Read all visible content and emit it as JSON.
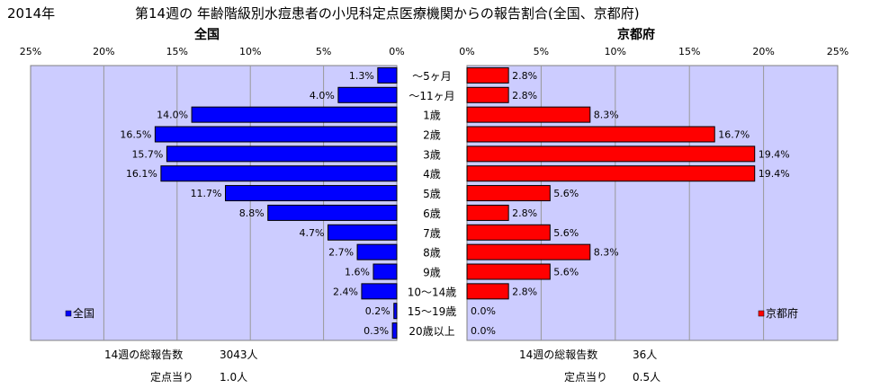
{
  "header": {
    "year": "2014年",
    "title": "第14週の 年齢階級別水痘患者の小児科定点医療機関からの報告割合(全国、京都府)"
  },
  "chart_data": [
    {
      "type": "bar",
      "orientation": "horizontal",
      "direction": "reversed",
      "title": "全国",
      "legend": "全国",
      "legend_position": "bottom-left",
      "color": "#0000ff",
      "xlim": [
        0,
        25
      ],
      "ticks": [
        "25%",
        "20%",
        "15%",
        "10%",
        "5%",
        "0%"
      ],
      "categories": [
        "～5ヶ月",
        "～11ヶ月",
        "1歳",
        "2歳",
        "3歳",
        "4歳",
        "5歳",
        "6歳",
        "7歳",
        "8歳",
        "9歳",
        "10～14歳",
        "15～19歳",
        "20歳以上"
      ],
      "values": [
        1.3,
        4.0,
        14.0,
        16.5,
        15.7,
        16.1,
        11.7,
        8.8,
        4.7,
        2.7,
        1.6,
        2.4,
        0.2,
        0.3
      ],
      "labels": [
        "1.3%",
        "4.0%",
        "14.0%",
        "16.5%",
        "15.7%",
        "16.1%",
        "11.7%",
        "8.8%",
        "4.7%",
        "2.7%",
        "1.6%",
        "2.4%",
        "0.2%",
        "0.3%"
      ]
    },
    {
      "type": "bar",
      "orientation": "horizontal",
      "direction": "normal",
      "title": "京都府",
      "legend": "京都府",
      "legend_position": "bottom-right",
      "color": "#ff0000",
      "xlim": [
        0,
        25
      ],
      "ticks": [
        "0%",
        "5%",
        "10%",
        "15%",
        "20%",
        "25%"
      ],
      "categories": [
        "～5ヶ月",
        "～11ヶ月",
        "1歳",
        "2歳",
        "3歳",
        "4歳",
        "5歳",
        "6歳",
        "7歳",
        "8歳",
        "9歳",
        "10～14歳",
        "15～19歳",
        "20歳以上"
      ],
      "values": [
        2.8,
        2.8,
        8.3,
        16.7,
        19.4,
        19.4,
        5.6,
        2.8,
        5.6,
        8.3,
        5.6,
        2.8,
        0.0,
        0.0
      ],
      "labels": [
        "2.8%",
        "2.8%",
        "8.3%",
        "16.7%",
        "19.4%",
        "19.4%",
        "5.6%",
        "2.8%",
        "5.6%",
        "8.3%",
        "5.6%",
        "2.8%",
        "0.0%",
        "0.0%"
      ]
    }
  ],
  "summary": {
    "national": {
      "total_label": "14週の総報告数",
      "total_value": "3043人",
      "per_site_label": "定点当り",
      "per_site_value": "1.0人"
    },
    "kyoto": {
      "total_label": "14週の総報告数",
      "total_value": "36人",
      "per_site_label": "定点当り",
      "per_site_value": "0.5人"
    }
  },
  "colors": {
    "plot_background": "#ccccff",
    "grid": "#999999",
    "national_bar": "#0000ff",
    "kyoto_bar": "#ff0000"
  }
}
